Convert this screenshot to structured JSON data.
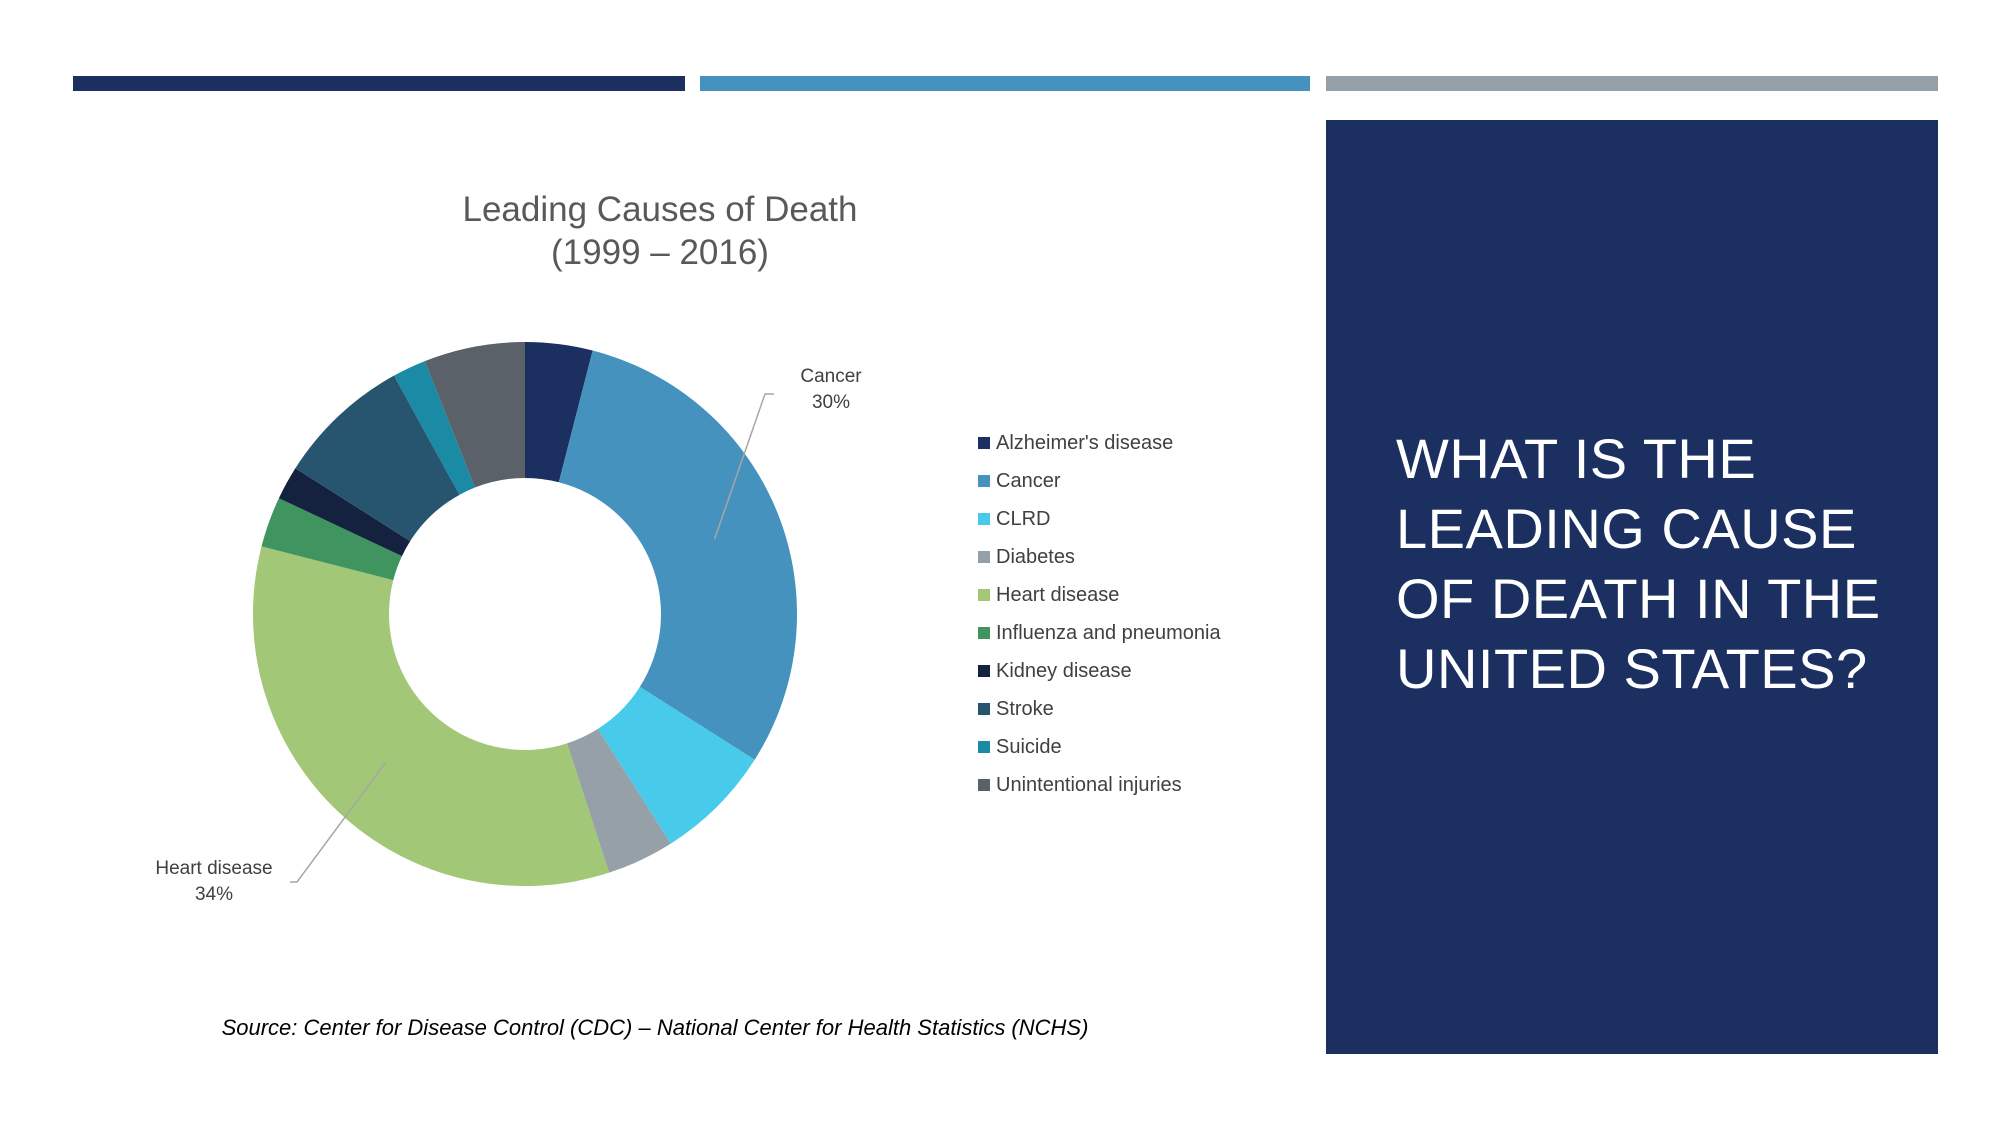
{
  "header_bars": {
    "colors": [
      "#1b3060",
      "#4592bf",
      "#95a0a8"
    ]
  },
  "side_panel": {
    "background": "#1b3060",
    "title": "What is the leading cause of death in the united states?"
  },
  "chart_data": {
    "type": "donut",
    "title": [
      "Leading Causes of Death",
      "(1999 – 2016)"
    ],
    "legend_position": "right",
    "series": [
      {
        "name": "Alzheimer's disease",
        "value": 4,
        "color": "#1b3060"
      },
      {
        "name": "Cancer",
        "value": 30,
        "color": "#4592bf"
      },
      {
        "name": "CLRD",
        "value": 7,
        "color": "#48cbea"
      },
      {
        "name": "Diabetes",
        "value": 4,
        "color": "#95a0a8"
      },
      {
        "name": "Heart disease",
        "value": 34,
        "color": "#a2c777"
      },
      {
        "name": "Influenza and pneumonia",
        "value": 3,
        "color": "#3f9460"
      },
      {
        "name": "Kidney disease",
        "value": 2,
        "color": "#15223f"
      },
      {
        "name": "Stroke",
        "value": 8,
        "color": "#27546f"
      },
      {
        "name": "Suicide",
        "value": 2,
        "color": "#1a8aa5"
      },
      {
        "name": "Unintentional injuries",
        "value": 6,
        "color": "#5a6168"
      }
    ],
    "data_labels": [
      {
        "category": "Cancer",
        "value": "30%"
      },
      {
        "category": "Heart disease",
        "value": "34%"
      }
    ]
  },
  "source": "Source: Center for Disease Control (CDC) – National Center for Health Statistics (NCHS)"
}
